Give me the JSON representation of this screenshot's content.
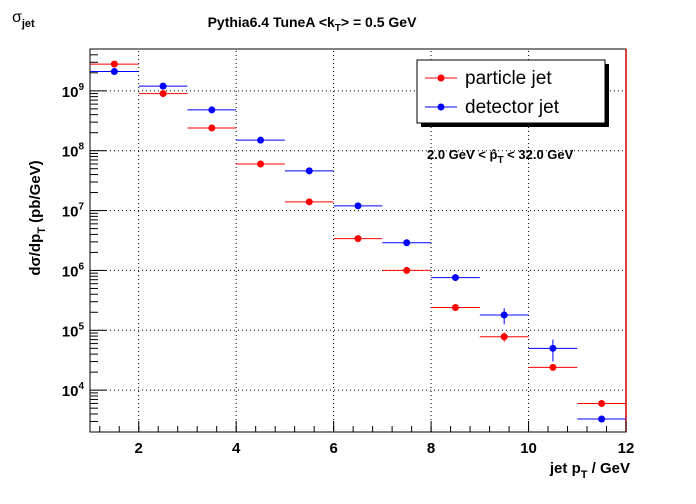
{
  "chart_data": {
    "type": "scatter",
    "canvas_label": "σ",
    "canvas_label_sub": "jet",
    "title": "Pythia6.4 TuneA <k",
    "title_sub": "T",
    "title_tail": "> = 0.5 GeV",
    "xlabel": "jet p",
    "xlabel_sub": "T",
    "xlabel_tail": " / GeV",
    "ylabel": "dσ/dp",
    "ylabel_sub": "T",
    "ylabel_tail": "  (pb/GeV)",
    "xlim": [
      1,
      12
    ],
    "ylim": [
      2000,
      5000000000
    ],
    "y_scale": "log",
    "grid": true,
    "legend_position": "top-right",
    "annotation": "2.0 GeV < p̂",
    "annotation_sub": "T",
    "annotation_tail": " < 32.0 GeV",
    "x_ticks": [
      2,
      4,
      6,
      8,
      10,
      12
    ],
    "x_tick_labels": [
      "2",
      "4",
      "6",
      "8",
      "10",
      "12"
    ],
    "y_ticks": [
      10000,
      100000,
      1000000,
      10000000,
      100000000,
      1000000000
    ],
    "y_tick_base": "10",
    "y_tick_exponents": [
      "4",
      "5",
      "6",
      "7",
      "8",
      "9"
    ],
    "series": [
      {
        "name": "particle jet",
        "color": "#ff0000",
        "x": [
          1.5,
          2.5,
          3.5,
          4.5,
          5.5,
          6.5,
          7.5,
          8.5,
          9.5,
          10.5,
          11.5
        ],
        "x_err": 0.5,
        "y": [
          2800000000,
          900000000,
          240000000,
          60000000,
          14000000,
          3400000,
          1000000,
          240000,
          78000,
          24000,
          6000
        ],
        "y_err_rel": [
          0.05,
          0.05,
          0.05,
          0.05,
          0.05,
          0.05,
          0.05,
          0.06,
          0.18,
          0.1,
          0.12
        ]
      },
      {
        "name": "detector jet",
        "color": "#0000ff",
        "x": [
          1.5,
          2.5,
          3.5,
          4.5,
          5.5,
          6.5,
          7.5,
          8.5,
          9.5,
          10.5,
          11.5
        ],
        "x_err": 0.5,
        "y": [
          2100000000,
          1200000000,
          480000000,
          150000000,
          46000000,
          12000000,
          2900000,
          760000,
          180000,
          50000,
          3300
        ],
        "y_err_rel": [
          0.05,
          0.05,
          0.05,
          0.05,
          0.05,
          0.05,
          0.05,
          0.06,
          0.3,
          0.4,
          0.1
        ]
      }
    ]
  }
}
